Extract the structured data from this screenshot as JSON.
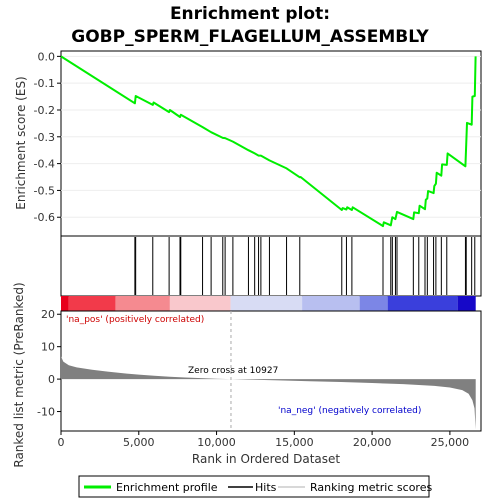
{
  "chart_data": {
    "type": "line",
    "title_line1": "Enrichment plot:",
    "title_line2": "GOBP_SPERM_FLAGELLUM_ASSEMBLY",
    "xlabel": "Rank in Ordered Dataset",
    "xlim": [
      0,
      27000
    ],
    "x_ticks": [
      0,
      5000,
      10000,
      15000,
      20000,
      25000
    ],
    "x_tick_labels": [
      "0",
      "5,000",
      "10,000",
      "15,000",
      "20,000",
      "25,000"
    ],
    "es_panel": {
      "ylabel": "Enrichment score (ES)",
      "ylim": [
        -0.67,
        0.02
      ],
      "y_ticks": [
        0.0,
        -0.1,
        -0.2,
        -0.3,
        -0.4,
        -0.5,
        -0.6
      ],
      "y_tick_labels": [
        "0.0",
        "-0.1",
        "-0.2",
        "-0.3",
        "-0.4",
        "-0.5",
        "-0.6"
      ],
      "series_name": "Enrichment profile",
      "color": "#00ee00",
      "points": [
        [
          0,
          0.0
        ],
        [
          4750,
          -0.175
        ],
        [
          4800,
          -0.148
        ],
        [
          5900,
          -0.181
        ],
        [
          5950,
          -0.172
        ],
        [
          6950,
          -0.208
        ],
        [
          7000,
          -0.2
        ],
        [
          7650,
          -0.226
        ],
        [
          7700,
          -0.218
        ],
        [
          9100,
          -0.264
        ],
        [
          9650,
          -0.283
        ],
        [
          10400,
          -0.304
        ],
        [
          10550,
          -0.305
        ],
        [
          11050,
          -0.318
        ],
        [
          12050,
          -0.35
        ],
        [
          12450,
          -0.362
        ],
        [
          12700,
          -0.37
        ],
        [
          12850,
          -0.37
        ],
        [
          13400,
          -0.388
        ],
        [
          14500,
          -0.418
        ],
        [
          15350,
          -0.451
        ],
        [
          15400,
          -0.45
        ],
        [
          18050,
          -0.573
        ],
        [
          18100,
          -0.566
        ],
        [
          18350,
          -0.571
        ],
        [
          18400,
          -0.563
        ],
        [
          18700,
          -0.573
        ],
        [
          18750,
          -0.563
        ],
        [
          20700,
          -0.633
        ],
        [
          20750,
          -0.619
        ],
        [
          21200,
          -0.63
        ],
        [
          21300,
          -0.6
        ],
        [
          21500,
          -0.607
        ],
        [
          21600,
          -0.58
        ],
        [
          22650,
          -0.607
        ],
        [
          22700,
          -0.582
        ],
        [
          23000,
          -0.585
        ],
        [
          23050,
          -0.557
        ],
        [
          23400,
          -0.57
        ],
        [
          23450,
          -0.535
        ],
        [
          23550,
          -0.53
        ],
        [
          23600,
          -0.502
        ],
        [
          23950,
          -0.51
        ],
        [
          24000,
          -0.484
        ],
        [
          24100,
          -0.475
        ],
        [
          24150,
          -0.434
        ],
        [
          24450,
          -0.445
        ],
        [
          24500,
          -0.403
        ],
        [
          24800,
          -0.405
        ],
        [
          24850,
          -0.362
        ],
        [
          26000,
          -0.41
        ],
        [
          26050,
          -0.33
        ],
        [
          26100,
          -0.248
        ],
        [
          26400,
          -0.255
        ],
        [
          26450,
          -0.15
        ],
        [
          26600,
          -0.148
        ],
        [
          26650,
          0.0
        ]
      ]
    },
    "hits": [
      4750,
      4800,
      5900,
      6950,
      7650,
      7700,
      9100,
      9650,
      10400,
      10550,
      11050,
      12050,
      12450,
      12700,
      12850,
      13400,
      14500,
      15350,
      18050,
      18350,
      18700,
      20700,
      21200,
      21300,
      21500,
      21600,
      22650,
      23000,
      23400,
      23550,
      23950,
      24100,
      24450,
      24800,
      26000,
      26050,
      26400,
      26600
    ],
    "ranked_panel": {
      "ylabel": "Ranked list metric (PreRanked)",
      "ylim": [
        -16,
        21
      ],
      "y_ticks": [
        20,
        10,
        0,
        -10
      ],
      "y_tick_labels": [
        "20",
        "10",
        "0",
        "-10"
      ],
      "zero_cross_rank": 10927,
      "zero_cross_label": "Zero cross at 10927",
      "pos_label": "'na_pos' (positively correlated)",
      "neg_label": "'na_neg' (negatively correlated)",
      "metric_points": [
        [
          0,
          7.0
        ],
        [
          150,
          5.4
        ],
        [
          500,
          4.3
        ],
        [
          1000,
          3.6
        ],
        [
          2000,
          2.9
        ],
        [
          3000,
          2.3
        ],
        [
          4000,
          1.8
        ],
        [
          5000,
          1.4
        ],
        [
          6000,
          1.05
        ],
        [
          7000,
          0.75
        ],
        [
          8000,
          0.5
        ],
        [
          9000,
          0.3
        ],
        [
          10000,
          0.12
        ],
        [
          10927,
          0.0
        ],
        [
          12000,
          -0.15
        ],
        [
          14000,
          -0.4
        ],
        [
          16000,
          -0.65
        ],
        [
          18000,
          -0.9
        ],
        [
          20000,
          -1.2
        ],
        [
          22000,
          -1.55
        ],
        [
          24000,
          -2.1
        ],
        [
          25000,
          -2.6
        ],
        [
          25800,
          -3.4
        ],
        [
          26200,
          -4.5
        ],
        [
          26450,
          -6.5
        ],
        [
          26580,
          -9.0
        ],
        [
          26660,
          -15.5
        ]
      ],
      "color": "#808080"
    },
    "heatmap": {
      "segments": [
        {
          "from": 0,
          "to": 500,
          "color": "#e8001c"
        },
        {
          "from": 500,
          "to": 3500,
          "color": "#f23a4a"
        },
        {
          "from": 3500,
          "to": 7000,
          "color": "#f58a90"
        },
        {
          "from": 7000,
          "to": 10900,
          "color": "#f9c8cc"
        },
        {
          "from": 10900,
          "to": 15500,
          "color": "#d8dcf4"
        },
        {
          "from": 15500,
          "to": 19200,
          "color": "#b8bff0"
        },
        {
          "from": 19200,
          "to": 21000,
          "color": "#7c86e6"
        },
        {
          "from": 21000,
          "to": 25500,
          "color": "#3a3fdc"
        },
        {
          "from": 25500,
          "to": 26660,
          "color": "#1608c8"
        }
      ]
    },
    "legend": {
      "items": [
        {
          "label": "Enrichment profile",
          "color": "#00ee00",
          "style": "thick-line"
        },
        {
          "label": "Hits",
          "color": "#000000",
          "style": "thin-line"
        },
        {
          "label": "Ranking metric scores",
          "color": "#cccccc",
          "style": "thin-line"
        }
      ]
    }
  }
}
